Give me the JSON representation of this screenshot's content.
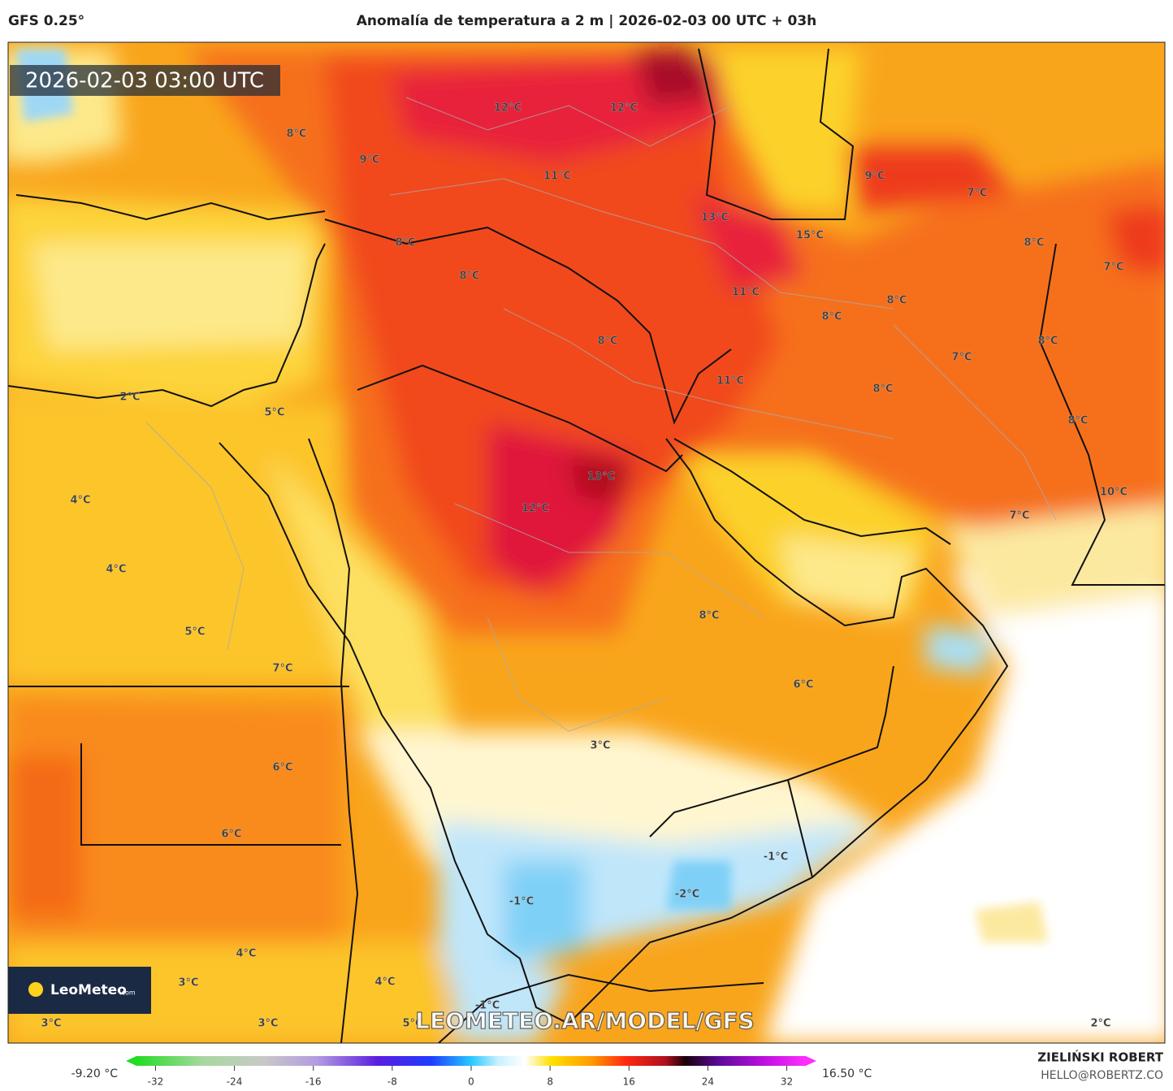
{
  "header": {
    "model": "GFS 0.25°",
    "title": "Anomalía de temperatura a 2 m | 2026-02-03 00 UTC + 03h"
  },
  "map": {
    "valid_time": "2026-02-03 03:00 UTC",
    "labels": [
      "12°C",
      "12°C",
      "8°C",
      "9°C",
      "11°C",
      "9°C",
      "7°C",
      "13°C",
      "15°C",
      "8°C",
      "8°C",
      "7°C",
      "8°C",
      "11°C",
      "8°C",
      "8°C",
      "8°C",
      "8°C",
      "7°C",
      "11°C",
      "8°C",
      "2°C",
      "5°C",
      "8°C",
      "13°C",
      "10°C",
      "4°C",
      "12°C",
      "7°C",
      "4°C",
      "8°C",
      "5°C",
      "7°C",
      "6°C",
      "3°C",
      "6°C",
      "6°C",
      "-1°C",
      "-2°C",
      "-1°C",
      "4°C",
      "4°C",
      "3°C",
      "-1°C",
      "3°C",
      "3°C",
      "5°C",
      "2°C"
    ],
    "logo": {
      "name": "LeoMeteo",
      "suffix": ".com"
    },
    "watermark": "LEOMETEO.AR/MODEL/GFS"
  },
  "colorbar": {
    "min_label": "-9.20 °C",
    "max_label": "16.50 °C",
    "range": [
      -35,
      35
    ],
    "ticks": [
      -32,
      -24,
      -16,
      -8,
      0,
      8,
      16,
      24,
      32
    ]
  },
  "footer": {
    "author": "ZIELIŃSKI ROBERT",
    "email": "HELLO@ROBERTZ.CO"
  }
}
